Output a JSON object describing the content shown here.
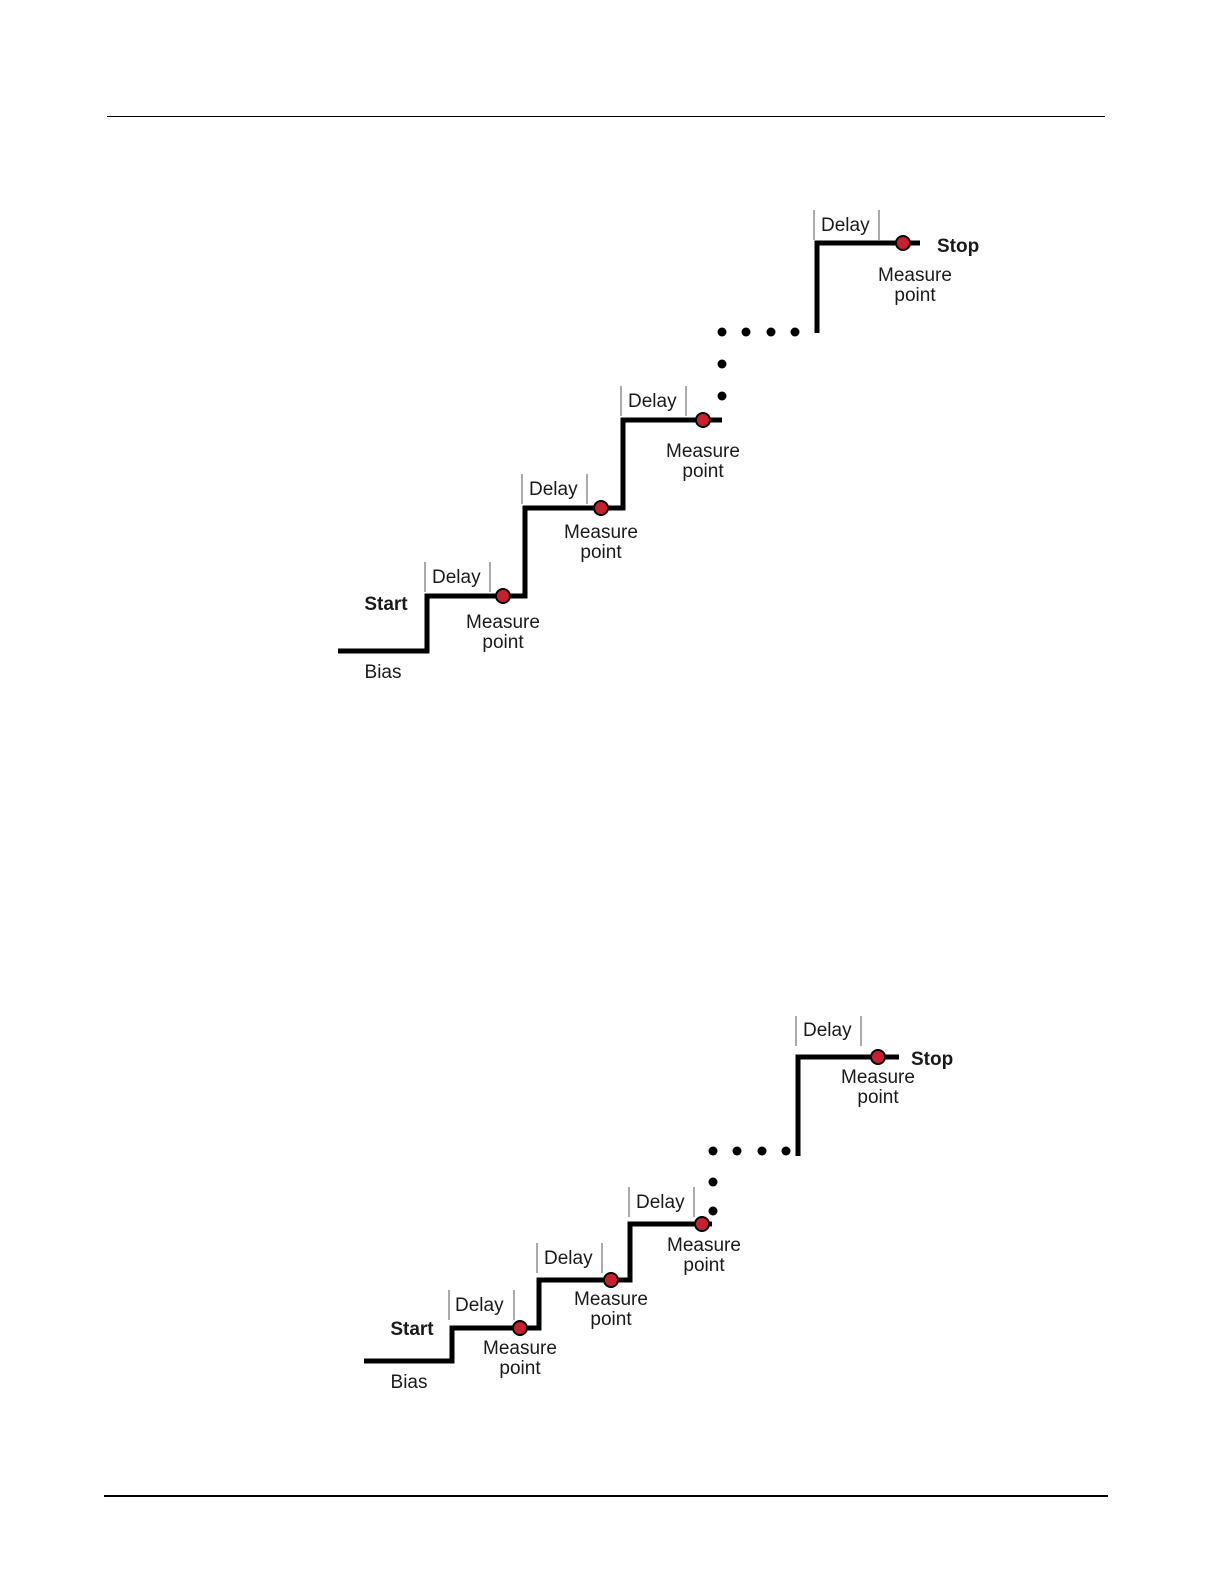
{
  "labels": {
    "bias": "Bias",
    "start": "Start",
    "stop": "Stop",
    "delay": "Delay",
    "measure_line1": "Measure",
    "measure_line2": "point"
  },
  "diagrams": [
    {
      "name": "staircase-sweep-1",
      "visible_steps_before_gap": 3,
      "final_step": 1,
      "measure_points": 4,
      "continuation_dots": 6
    },
    {
      "name": "staircase-sweep-2",
      "visible_steps_before_gap": 3,
      "final_step": 1,
      "measure_points": 4,
      "continuation_dots": 6
    }
  ],
  "colors": {
    "line": "#000000",
    "measure_point": "#c8202e",
    "delay_tick": "#555555"
  }
}
